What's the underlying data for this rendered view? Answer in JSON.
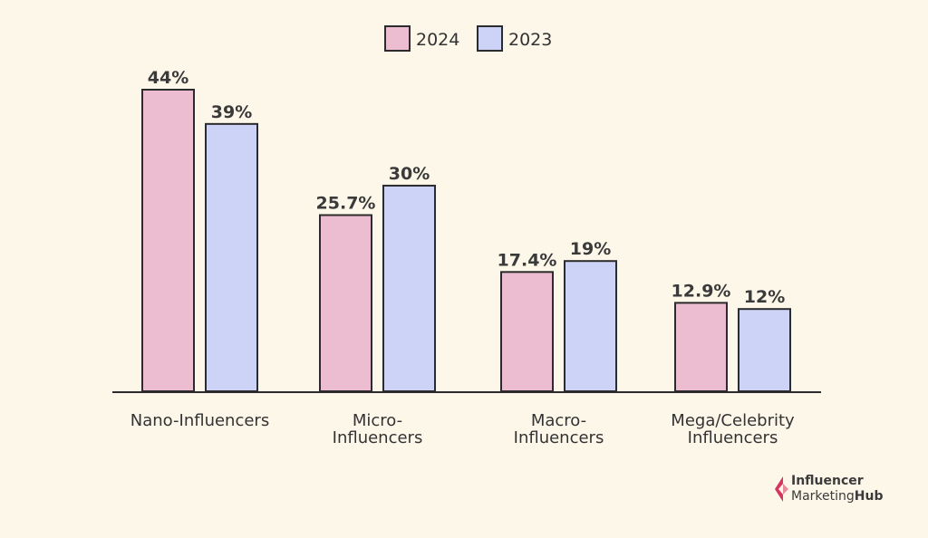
{
  "chart_data": {
    "type": "bar",
    "categories": [
      [
        "Nano-Influencers"
      ],
      [
        "Micro-",
        "Influencers"
      ],
      [
        "Macro-",
        "Influencers"
      ],
      [
        "Mega/Celebrity",
        "Influencers"
      ]
    ],
    "series": [
      {
        "name": "2024",
        "values": [
          44,
          25.7,
          17.4,
          12.9
        ],
        "labels": [
          "44%",
          "25.7%",
          "17.4%",
          "12.9%"
        ],
        "color": "#ecbdd0"
      },
      {
        "name": "2023",
        "values": [
          39,
          30,
          19,
          12
        ],
        "labels": [
          "39%",
          "30%",
          "19%",
          "12%"
        ],
        "color": "#cdd3f6"
      }
    ],
    "ylim": [
      0,
      50
    ],
    "grid": false,
    "legend_position": "top-center",
    "bar_stroke": "#2b2b2b",
    "axis_color": "#2b2b2b"
  },
  "logo": {
    "line1": "Influencer",
    "line2_a": "Marketing",
    "line2_b": "Hub",
    "color": "#d6355f"
  }
}
